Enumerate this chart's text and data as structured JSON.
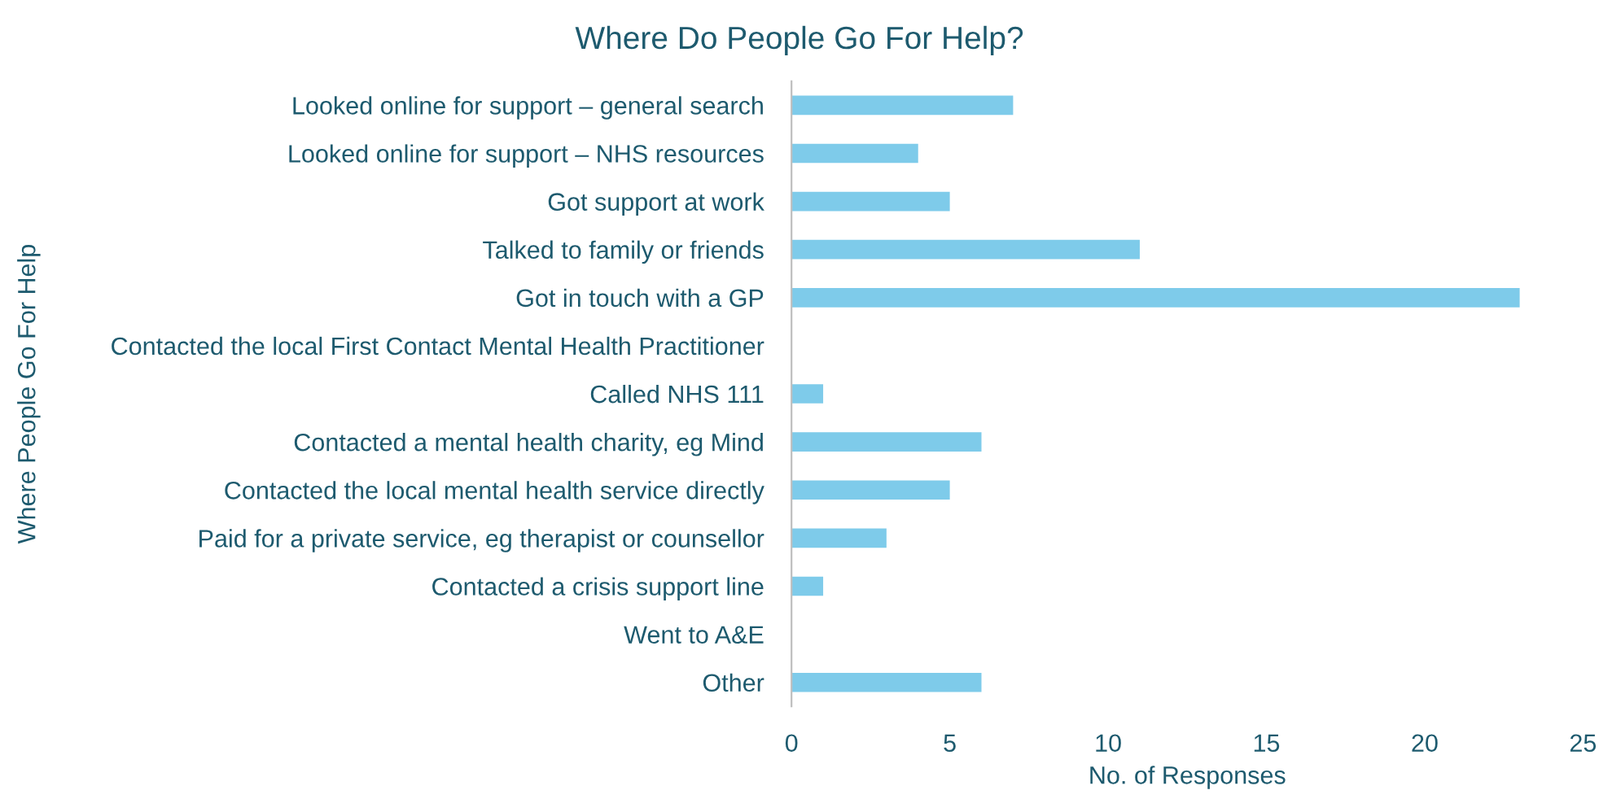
{
  "chart_data": {
    "type": "bar",
    "orientation": "horizontal",
    "title": "Where Do People Go For Help?",
    "xlabel": "No. of Responses",
    "ylabel": "Where People Go For Help",
    "categories": [
      "Looked online for support – general search",
      "Looked online for support – NHS resources",
      "Got support at work",
      "Talked to family or friends",
      "Got in touch with a GP",
      "Contacted the local First Contact Mental Health Practitioner",
      "Called NHS 111",
      "Contacted a mental health charity, eg Mind",
      "Contacted the local mental health service directly",
      "Paid for a private service, eg therapist or counsellor",
      "Contacted a crisis support line",
      "Went to A&E",
      "Other"
    ],
    "values": [
      7,
      4,
      5,
      11,
      23,
      0,
      1,
      6,
      5,
      3,
      1,
      0,
      6
    ],
    "color": "#7ecbea",
    "xlim": [
      0,
      25
    ],
    "xticks": [
      0,
      5,
      10,
      15,
      20,
      25
    ],
    "grid": false,
    "legend": false
  }
}
